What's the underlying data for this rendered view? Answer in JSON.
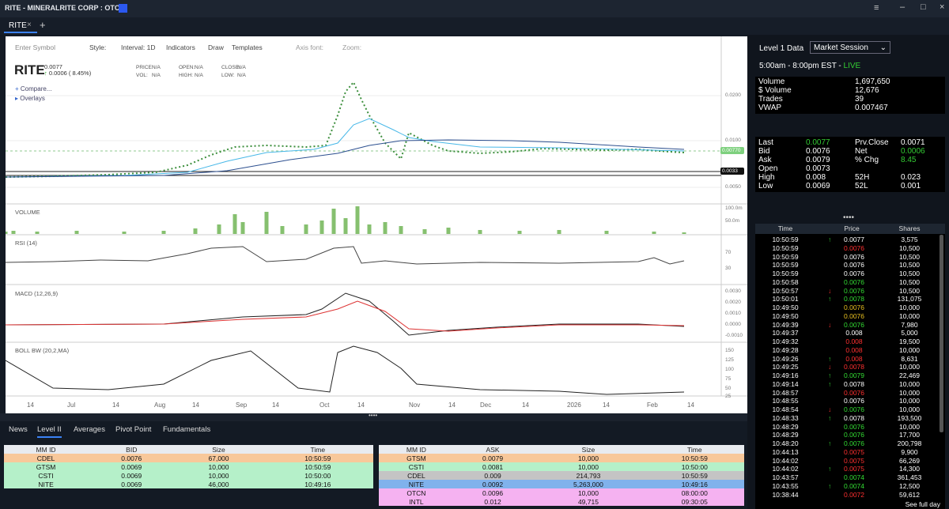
{
  "window": {
    "title": "RITE - MINERALRITE CORP : OTC"
  },
  "tabs": [
    "RITE"
  ],
  "toolbar": {
    "symbol_placeholder": "Enter Symbol",
    "items": [
      "Style:",
      "Interval: 1D",
      "Indicators",
      "Draw",
      "Templates",
      "Axis font:",
      "Zoom:"
    ]
  },
  "quote_header": {
    "symbol": "RITE",
    "last": "0.0077",
    "change": "0.0006 ( 8.45%)",
    "fields": [
      {
        "label": "PRICE:",
        "value": "N/A"
      },
      {
        "label": "VOL:",
        "value": "N/A"
      },
      {
        "label": "OPEN:",
        "value": "N/A"
      },
      {
        "label": "HIGH:",
        "value": "N/A"
      },
      {
        "label": "CLOSE:",
        "value": "N/A"
      },
      {
        "label": "LOW:",
        "value": "N/A"
      }
    ]
  },
  "chart_links": [
    "Compare...",
    "Overlays"
  ],
  "price_axis": [
    "0.0200",
    "0.0100",
    "0.0050"
  ],
  "price_badges": [
    "0.00770",
    "0.0033"
  ],
  "panes": [
    {
      "title": "VOLUME",
      "axis": [
        "100.0m",
        "50.0m"
      ]
    },
    {
      "title": "RSI (14)",
      "axis": [
        "70",
        "30"
      ]
    },
    {
      "title": "MACD (12,26,9)",
      "axis": [
        "0.0030",
        "0.0020",
        "0.0010",
        "0.0000",
        "-0.0010"
      ]
    },
    {
      "title": "BOLL BW (20,2,MA)",
      "axis": [
        "150",
        "125",
        "100",
        "75",
        "50",
        "25"
      ]
    }
  ],
  "x_axis": [
    "14",
    "Jul",
    "14",
    "Aug",
    "14",
    "Sep",
    "14",
    "Oct",
    "14",
    "Nov",
    "14",
    "Dec",
    "14",
    "2026",
    "14",
    "Feb",
    "14"
  ],
  "level1": {
    "title": "Level 1 Data",
    "session": "Market Session",
    "hours": "5:00am - 8:00pm EST - ",
    "status": "LIVE",
    "stats": [
      [
        "Volume",
        "1,697,650"
      ],
      [
        "$ Volume",
        "12,676"
      ],
      [
        "Trades",
        "39"
      ],
      [
        "VWAP",
        "0.007467"
      ]
    ],
    "quote": [
      [
        {
          "t": "Last"
        },
        {
          "t": "0.0077",
          "c": "green"
        },
        {
          "t": "Prv.Close"
        },
        {
          "t": "0.0071"
        }
      ],
      [
        {
          "t": "Bid"
        },
        {
          "t": "0.0076"
        },
        {
          "t": "Net"
        },
        {
          "t": "0.0006",
          "c": "green"
        }
      ],
      [
        {
          "t": "Ask"
        },
        {
          "t": "0.0079"
        },
        {
          "t": "% Chg"
        },
        {
          "t": "8.45",
          "c": "green"
        }
      ],
      [
        {
          "t": "Open"
        },
        {
          "t": "0.0073"
        }
      ],
      [
        {
          "t": "High"
        },
        {
          "t": "0.008"
        },
        {
          "t": "52H"
        },
        {
          "t": "0.023"
        }
      ],
      [
        {
          "t": "Low"
        },
        {
          "t": "0.0069"
        },
        {
          "t": "52L"
        },
        {
          "t": "0.001"
        }
      ]
    ]
  },
  "time_sales": {
    "columns": [
      "Time",
      "Price",
      "Shares"
    ],
    "footer": "See full day",
    "rows": [
      {
        "time": "10:50:59",
        "price": "0.0077",
        "shares": "3,575",
        "dir": "up",
        "color": "white"
      },
      {
        "time": "10:50:59",
        "price": "0.0076",
        "shares": "10,500",
        "dir": null,
        "color": "red"
      },
      {
        "time": "10:50:59",
        "price": "0.0076",
        "shares": "10,500",
        "dir": null,
        "color": "white"
      },
      {
        "time": "10:50:59",
        "price": "0.0076",
        "shares": "10,500",
        "dir": null,
        "color": "white"
      },
      {
        "time": "10:50:59",
        "price": "0.0076",
        "shares": "10,500",
        "dir": null,
        "color": "white"
      },
      {
        "time": "10:50:58",
        "price": "0.0076",
        "shares": "10,500",
        "dir": null,
        "color": "green"
      },
      {
        "time": "10:50:57",
        "price": "0.0076",
        "shares": "10,500",
        "dir": "down",
        "color": "green"
      },
      {
        "time": "10:50:01",
        "price": "0.0078",
        "shares": "131,075",
        "dir": "up",
        "color": "green"
      },
      {
        "time": "10:49:50",
        "price": "0.0076",
        "shares": "10,000",
        "dir": null,
        "color": "yellow"
      },
      {
        "time": "10:49:50",
        "price": "0.0076",
        "shares": "10,000",
        "dir": null,
        "color": "yellow"
      },
      {
        "time": "10:49:39",
        "price": "0.0076",
        "shares": "7,980",
        "dir": "down",
        "color": "green"
      },
      {
        "time": "10:49:37",
        "price": "0.008",
        "shares": "5,000",
        "dir": null,
        "color": "white"
      },
      {
        "time": "10:49:32",
        "price": "0.008",
        "shares": "19,500",
        "dir": null,
        "color": "red"
      },
      {
        "time": "10:49:28",
        "price": "0.008",
        "shares": "10,000",
        "dir": null,
        "color": "red"
      },
      {
        "time": "10:49:26",
        "price": "0.008",
        "shares": "8,631",
        "dir": "up",
        "color": "red"
      },
      {
        "time": "10:49:25",
        "price": "0.0078",
        "shares": "10,000",
        "dir": "down",
        "color": "red"
      },
      {
        "time": "10:49:16",
        "price": "0.0079",
        "shares": "22,469",
        "dir": "up",
        "color": "green"
      },
      {
        "time": "10:49:14",
        "price": "0.0078",
        "shares": "10,000",
        "dir": "up",
        "color": "white"
      },
      {
        "time": "10:48:57",
        "price": "0.0076",
        "shares": "10,000",
        "dir": null,
        "color": "red"
      },
      {
        "time": "10:48:55",
        "price": "0.0076",
        "shares": "10,000",
        "dir": null,
        "color": "white"
      },
      {
        "time": "10:48:54",
        "price": "0.0076",
        "shares": "10,000",
        "dir": "down",
        "color": "green"
      },
      {
        "time": "10:48:33",
        "price": "0.0078",
        "shares": "193,500",
        "dir": "up",
        "color": "white"
      },
      {
        "time": "10:48:29",
        "price": "0.0076",
        "shares": "10,000",
        "dir": null,
        "color": "green"
      },
      {
        "time": "10:48:29",
        "price": "0.0076",
        "shares": "17,700",
        "dir": null,
        "color": "green"
      },
      {
        "time": "10:48:20",
        "price": "0.0076",
        "shares": "200,798",
        "dir": "up",
        "color": "green"
      },
      {
        "time": "10:44:13",
        "price": "0.0075",
        "shares": "9,900",
        "dir": null,
        "color": "red"
      },
      {
        "time": "10:44:02",
        "price": "0.0075",
        "shares": "66,269",
        "dir": null,
        "color": "red"
      },
      {
        "time": "10:44:02",
        "price": "0.0075",
        "shares": "14,300",
        "dir": "up",
        "color": "red"
      },
      {
        "time": "10:43:57",
        "price": "0.0074",
        "shares": "361,453",
        "dir": null,
        "color": "green"
      },
      {
        "time": "10:43:55",
        "price": "0.0074",
        "shares": "12,500",
        "dir": "up",
        "color": "green"
      },
      {
        "time": "10:38:44",
        "price": "0.0072",
        "shares": "59,612",
        "dir": null,
        "color": "red"
      }
    ]
  },
  "bottom_tabs": [
    "News",
    "Level II",
    "Averages",
    "Pivot Point",
    "Fundamentals"
  ],
  "active_tab": 1,
  "bid_table": {
    "columns": [
      "MM ID",
      "BID",
      "Size",
      "Time"
    ],
    "rows": [
      {
        "cells": [
          "CDEL",
          "0.0076",
          "67,000",
          "10:50:59"
        ],
        "color": "#f8c89a"
      },
      {
        "cells": [
          "GTSM",
          "0.0069",
          "10,000",
          "10:50:59"
        ],
        "color": "#b5f0c9"
      },
      {
        "cells": [
          "CSTI",
          "0.0069",
          "10,000",
          "10:50:00"
        ],
        "color": "#b5f0c9"
      },
      {
        "cells": [
          "NITE",
          "0.0069",
          "46,000",
          "10:49:16"
        ],
        "color": "#b5f0c9"
      }
    ]
  },
  "ask_table": {
    "columns": [
      "MM ID",
      "ASK",
      "Size",
      "Time"
    ],
    "rows": [
      {
        "cells": [
          "GTSM",
          "0.0079",
          "10,000",
          "10:50:59"
        ],
        "color": "#f8c89a"
      },
      {
        "cells": [
          "CSTI",
          "0.0081",
          "10,000",
          "10:50:00"
        ],
        "color": "#b5f0c9"
      },
      {
        "cells": [
          "CDEL",
          "0.009",
          "214,793",
          "10:50:59"
        ],
        "color": "#c4c4c4"
      },
      {
        "cells": [
          "NITE",
          "0.0092",
          "5,263,000",
          "10:49:16"
        ],
        "color": "#80b2ec"
      },
      {
        "cells": [
          "OTCN",
          "0.0096",
          "10,000",
          "08:00:00"
        ],
        "color": "#f5b2f1"
      },
      {
        "cells": [
          "INTL",
          "0.012",
          "49,715",
          "09:30:05"
        ],
        "color": "#f5b2f1"
      }
    ]
  }
}
